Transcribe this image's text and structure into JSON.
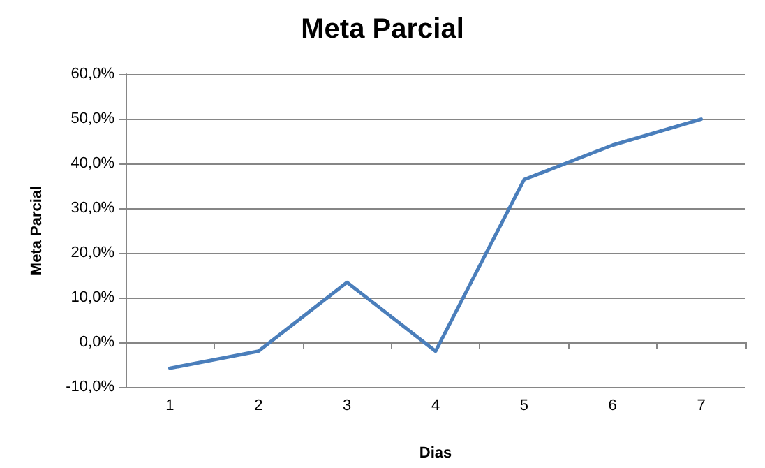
{
  "chart_data": {
    "type": "line",
    "title": "Meta Parcial",
    "xlabel": "Dias",
    "ylabel": "Meta Parcial",
    "categories": [
      "1",
      "2",
      "3",
      "4",
      "5",
      "6",
      "7"
    ],
    "series": [
      {
        "color": "#4a7ebb",
        "values": [
          -5.8,
          -2.0,
          13.4,
          -2.0,
          36.4,
          44.1,
          49.9
        ]
      }
    ],
    "ylim": [
      -10,
      60
    ],
    "yticks": [
      {
        "value": -10,
        "label": "-10,0%"
      },
      {
        "value": 0,
        "label": "0,0%"
      },
      {
        "value": 10,
        "label": "10,0%"
      },
      {
        "value": 20,
        "label": "20,0%"
      },
      {
        "value": 30,
        "label": "30,0%"
      },
      {
        "value": 40,
        "label": "40,0%"
      },
      {
        "value": 50,
        "label": "50,0%"
      },
      {
        "value": 60,
        "label": "60,0%"
      }
    ],
    "grid": "y",
    "marker": "none",
    "line_style": "solid"
  }
}
